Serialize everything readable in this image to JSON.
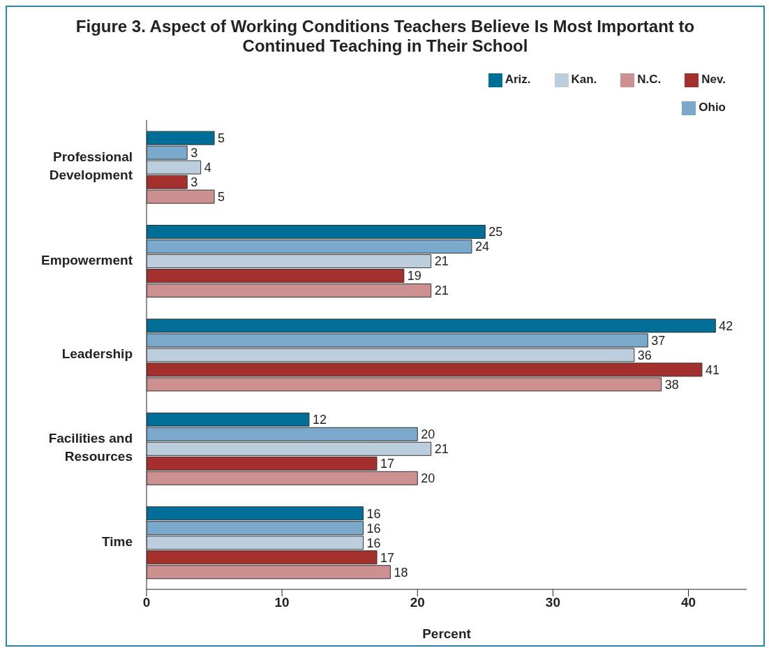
{
  "chart_data": {
    "type": "bar",
    "orientation": "horizontal",
    "title": "Figure 3. Aspect of Working Conditions Teachers Believe Is Most Important to Continued Teaching in Their School",
    "xlabel": "Percent",
    "categories": [
      "Professional Development",
      "Empowerment",
      "Leadership",
      "Facilities and Resources",
      "Time"
    ],
    "series": [
      {
        "name": "Ariz.",
        "color": "#006e96",
        "values": [
          5,
          25,
          42,
          12,
          16
        ]
      },
      {
        "name": "Ohio",
        "color": "#7aa9cb",
        "values": [
          3,
          24,
          37,
          20,
          16
        ]
      },
      {
        "name": "Kan.",
        "color": "#bccedd",
        "values": [
          4,
          21,
          36,
          21,
          16
        ]
      },
      {
        "name": "Nev.",
        "color": "#a4302e",
        "values": [
          3,
          19,
          41,
          17,
          17
        ]
      },
      {
        "name": "N.C.",
        "color": "#cc9090",
        "values": [
          5,
          21,
          38,
          20,
          18
        ]
      }
    ],
    "xlim": [
      0,
      44.3
    ],
    "xticks": [
      0,
      10,
      20,
      30,
      40
    ],
    "data_labels": true,
    "grid": false,
    "legend": "top right"
  }
}
